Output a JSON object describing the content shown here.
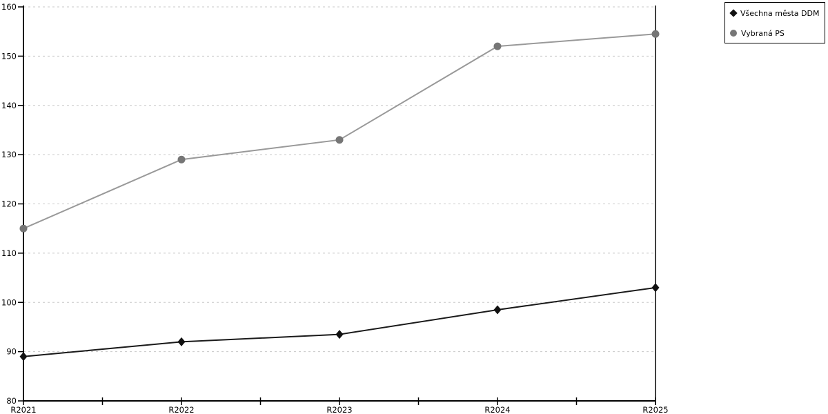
{
  "legend": {
    "items": [
      {
        "label": "Všechna města DDM",
        "marker": "diamond",
        "color": "#111111"
      },
      {
        "label": "Vybraná PS",
        "marker": "circle",
        "color": "#767676"
      }
    ]
  },
  "chart_data": {
    "type": "line",
    "title": "",
    "xlabel": "",
    "ylabel": "",
    "categories": [
      "R2021",
      "R2022",
      "R2023",
      "R2024",
      "R2025"
    ],
    "series": [
      {
        "name": "Všechna města DDM",
        "values": [
          89,
          92,
          93.5,
          98.5,
          103
        ],
        "line_color": "#1a1a1a",
        "marker": "diamond",
        "marker_color": "#111111"
      },
      {
        "name": "Vybraná PS",
        "values": [
          115,
          129,
          133,
          152,
          154.5
        ],
        "line_color": "#999999",
        "marker": "circle",
        "marker_color": "#767676"
      }
    ],
    "ylim": [
      80,
      160
    ],
    "yticks": [
      80,
      90,
      100,
      110,
      120,
      130,
      140,
      150,
      160
    ],
    "grid": "horizontal-dashed",
    "grid_color": "#c8c8c8",
    "axis_color": "#000000",
    "legend_position": "top-right-outside"
  }
}
